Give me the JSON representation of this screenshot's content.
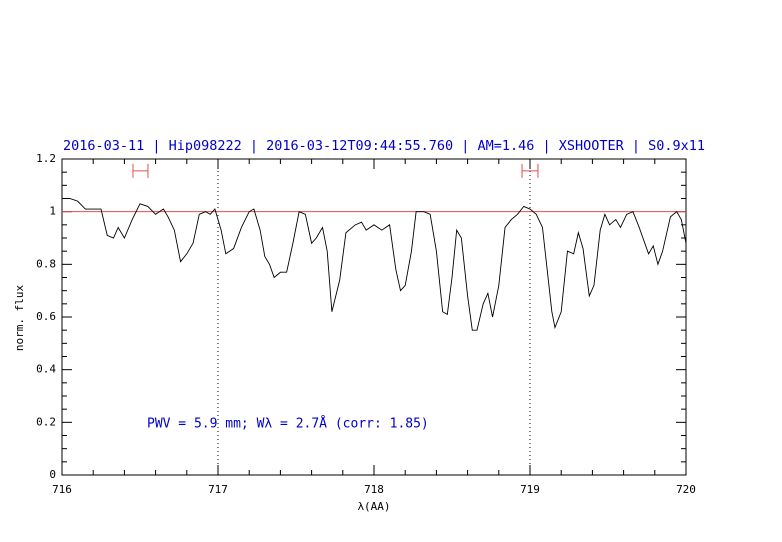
{
  "chart_data": {
    "type": "line",
    "title": "2016-03-11 | Hip098222 | 2016-03-12T09:44:55.760 | AM=1.46 | XSHOOTER | S0.9x11",
    "xlabel": "λ(AA)",
    "ylabel": "norm. flux",
    "annotation": "PWV = 5.9 mm; Wλ = 2.7Å (corr: 1.85)",
    "color": "#000000",
    "title_color": "#0000cc",
    "x": [
      716.0,
      716.05,
      716.1,
      716.15,
      716.2,
      716.25,
      716.29,
      716.33,
      716.36,
      716.4,
      716.45,
      716.5,
      716.55,
      716.6,
      716.65,
      716.68,
      716.72,
      716.76,
      716.8,
      716.84,
      716.88,
      716.92,
      716.95,
      716.98,
      717.02,
      717.05,
      717.1,
      717.15,
      717.2,
      717.23,
      717.27,
      717.3,
      717.33,
      717.36,
      717.4,
      717.44,
      717.48,
      717.52,
      717.56,
      717.6,
      717.63,
      717.67,
      717.7,
      717.73,
      717.78,
      717.82,
      717.88,
      717.92,
      717.95,
      718.0,
      718.05,
      718.1,
      718.14,
      718.17,
      718.2,
      718.24,
      718.27,
      718.32,
      718.36,
      718.4,
      718.44,
      718.47,
      718.5,
      718.53,
      718.56,
      718.6,
      718.63,
      718.66,
      718.7,
      718.73,
      718.76,
      718.8,
      718.84,
      718.88,
      718.92,
      718.96,
      719.0,
      719.04,
      719.08,
      719.11,
      719.14,
      719.16,
      719.2,
      719.24,
      719.28,
      719.31,
      719.34,
      719.38,
      719.41,
      719.45,
      719.48,
      719.51,
      719.55,
      719.58,
      719.62,
      719.66,
      719.7,
      719.73,
      719.76,
      719.79,
      719.82,
      719.85,
      719.9,
      719.94,
      719.97,
      720.0
    ],
    "values": [
      1.05,
      1.05,
      1.04,
      1.01,
      1.01,
      1.01,
      0.91,
      0.9,
      0.94,
      0.9,
      0.97,
      1.03,
      1.02,
      0.99,
      1.01,
      0.98,
      0.93,
      0.81,
      0.84,
      0.88,
      0.99,
      1.0,
      0.99,
      1.01,
      0.93,
      0.84,
      0.86,
      0.94,
      1.0,
      1.01,
      0.93,
      0.83,
      0.8,
      0.75,
      0.77,
      0.77,
      0.88,
      1.0,
      0.99,
      0.88,
      0.9,
      0.94,
      0.85,
      0.62,
      0.74,
      0.92,
      0.95,
      0.96,
      0.93,
      0.95,
      0.93,
      0.95,
      0.78,
      0.7,
      0.72,
      0.85,
      1.0,
      1.0,
      0.99,
      0.85,
      0.62,
      0.61,
      0.75,
      0.93,
      0.9,
      0.68,
      0.55,
      0.55,
      0.65,
      0.69,
      0.6,
      0.72,
      0.94,
      0.97,
      0.99,
      1.02,
      1.01,
      0.99,
      0.94,
      0.78,
      0.62,
      0.56,
      0.62,
      0.85,
      0.84,
      0.92,
      0.86,
      0.68,
      0.72,
      0.93,
      0.99,
      0.95,
      0.97,
      0.94,
      0.99,
      1.0,
      0.94,
      0.89,
      0.84,
      0.87,
      0.8,
      0.85,
      0.98,
      1.0,
      0.97,
      0.88
    ],
    "hlines": [
      {
        "y": 1,
        "color": "#e05050"
      }
    ],
    "vlines": [
      717,
      719
    ],
    "ranges": [
      {
        "x": [
          716.455,
          716.551
        ],
        "y": 1.155,
        "color": "#e05050"
      },
      {
        "x": [
          718.949,
          719.051
        ],
        "y": 1.155,
        "color": "#e05050"
      }
    ],
    "xlim": [
      716,
      720
    ],
    "xticks": [
      716,
      717,
      718,
      719,
      720
    ],
    "xminorticks": [
      716.2,
      716.4,
      716.6,
      716.8,
      717.2,
      717.4,
      717.6,
      717.8,
      718.2,
      718.4,
      718.6,
      718.8,
      719.2,
      719.4,
      719.6,
      719.8
    ],
    "ylim": [
      0,
      1.2
    ],
    "yticks": [
      0,
      0.2,
      0.4,
      0.6,
      0.8,
      1,
      1.2
    ],
    "yminorticks": [
      0.05,
      0.1,
      0.15,
      0.25,
      0.3,
      0.35,
      0.45,
      0.5,
      0.55,
      0.65,
      0.7,
      0.75,
      0.85,
      0.9,
      0.95,
      1.05,
      1.1,
      1.15
    ]
  }
}
